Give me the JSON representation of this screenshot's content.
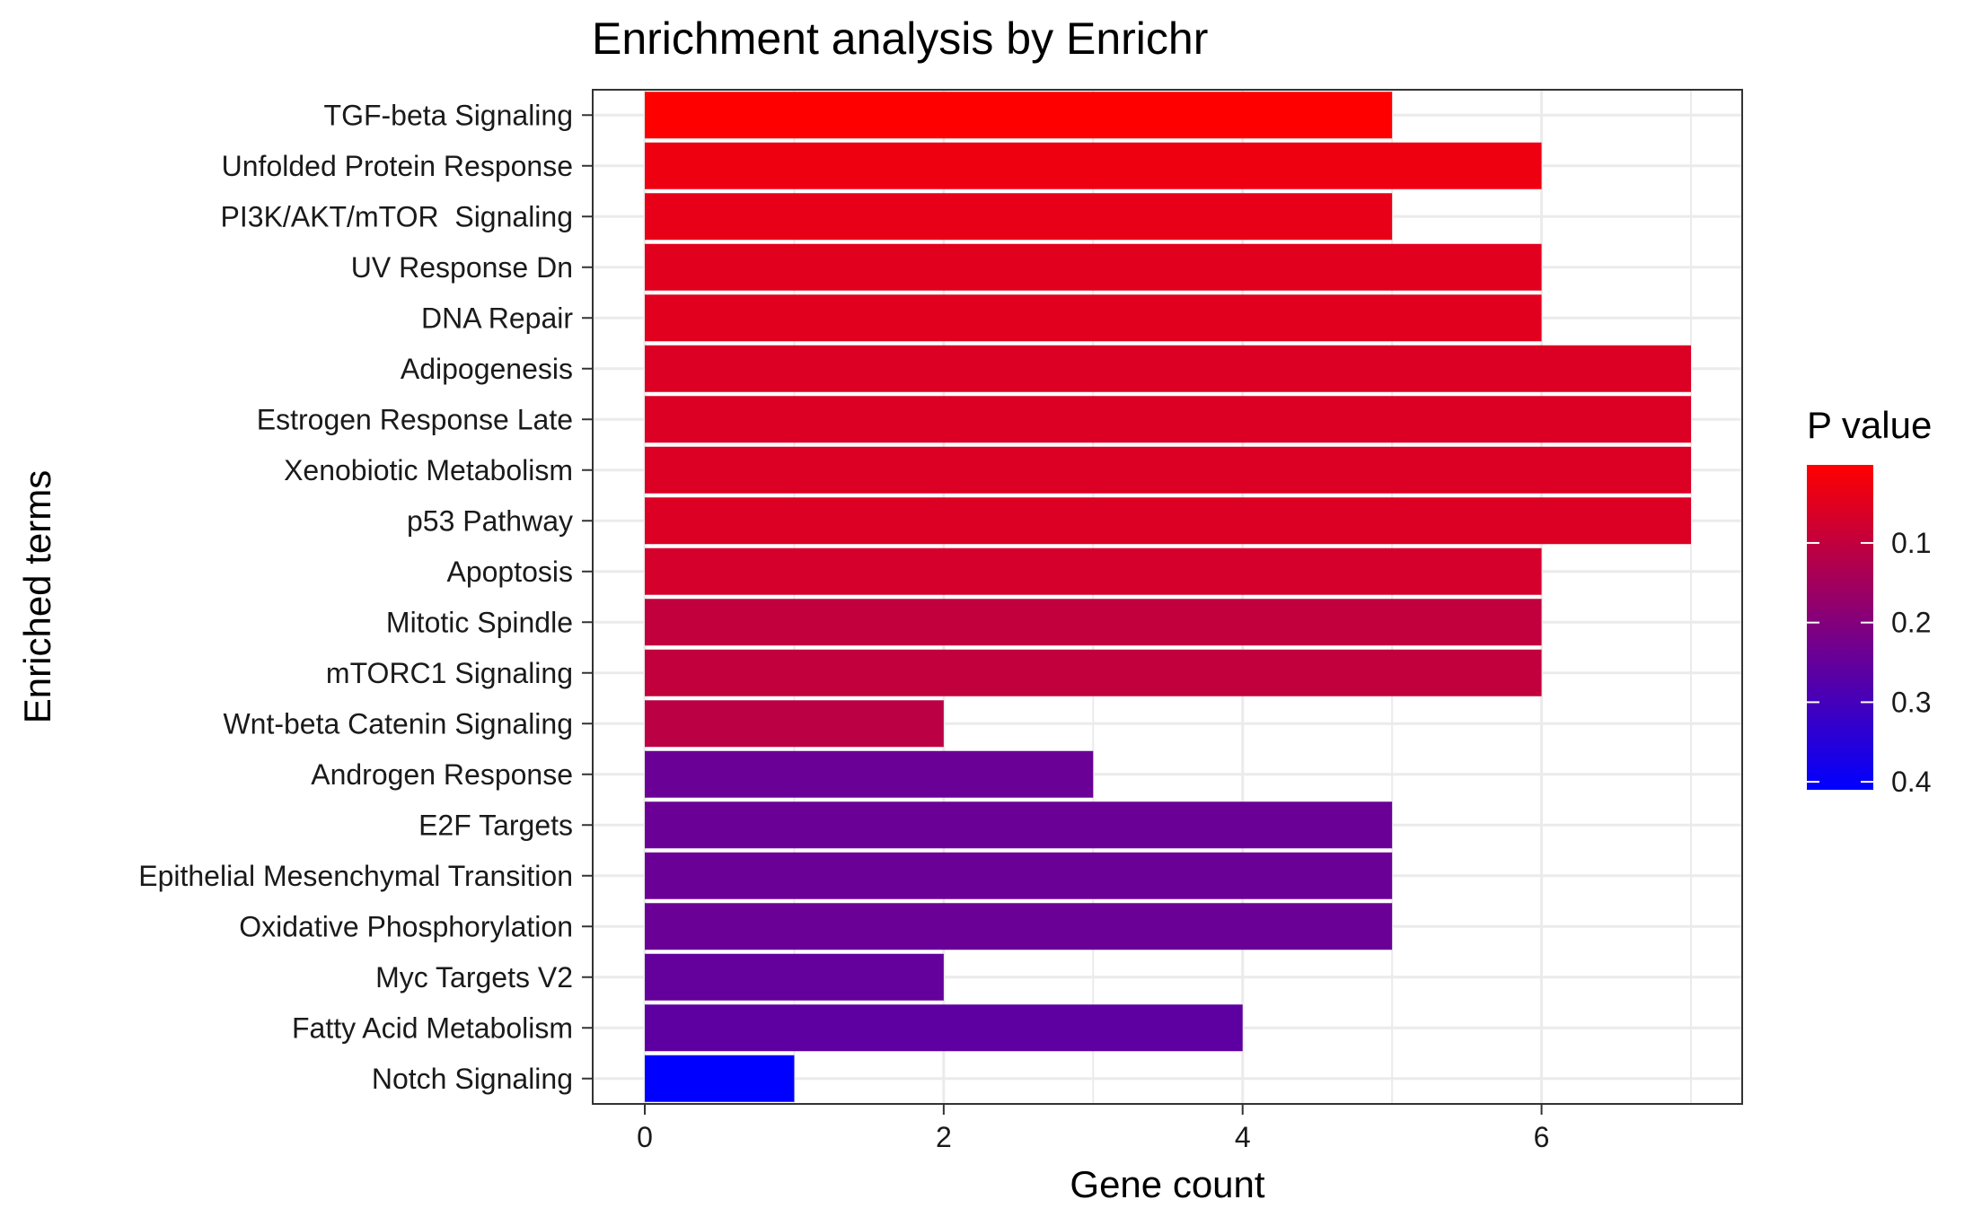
{
  "chart_data": {
    "type": "bar",
    "orientation": "horizontal",
    "title": "Enrichment analysis by Enrichr",
    "xlabel": "Gene count",
    "ylabel": "Enriched terms",
    "xlim": [
      0,
      7
    ],
    "x_ticks": [
      0,
      2,
      4,
      6
    ],
    "grid": true,
    "categories": [
      "TGF-beta Signaling",
      "Unfolded Protein Response",
      "PI3K/AKT/mTOR  Signaling",
      "UV Response Dn",
      "DNA Repair",
      "Adipogenesis",
      "Estrogen Response Late",
      "Xenobiotic Metabolism",
      "p53 Pathway",
      "Apoptosis",
      "Mitotic Spindle",
      "mTORC1 Signaling",
      "Wnt-beta Catenin Signaling",
      "Androgen Response",
      "E2F Targets",
      "Epithelial Mesenchymal Transition",
      "Oxidative Phosphorylation",
      "Myc Targets V2",
      "Fatty Acid Metabolism",
      "Notch Signaling"
    ],
    "values": [
      5,
      6,
      5,
      6,
      6,
      7,
      7,
      7,
      7,
      6,
      6,
      6,
      2,
      3,
      5,
      5,
      5,
      2,
      4,
      1
    ],
    "p_values": [
      0.002,
      0.03,
      0.04,
      0.05,
      0.05,
      0.06,
      0.06,
      0.06,
      0.06,
      0.07,
      0.1,
      0.1,
      0.11,
      0.24,
      0.24,
      0.24,
      0.24,
      0.25,
      0.26,
      0.41
    ],
    "legend": {
      "title": "P value",
      "position": "right",
      "ticks": [
        "0.1",
        "0.2",
        "0.3",
        "0.4"
      ],
      "tick_values": [
        0.1,
        0.2,
        0.3,
        0.4
      ],
      "range": [
        0.002,
        0.41
      ],
      "low_color": "#ff0000",
      "high_color": "#0000ff"
    },
    "colors": {
      "grid": "#ebebeb",
      "axis_text": "#1a1a1a",
      "panel_border": "#333333"
    }
  }
}
